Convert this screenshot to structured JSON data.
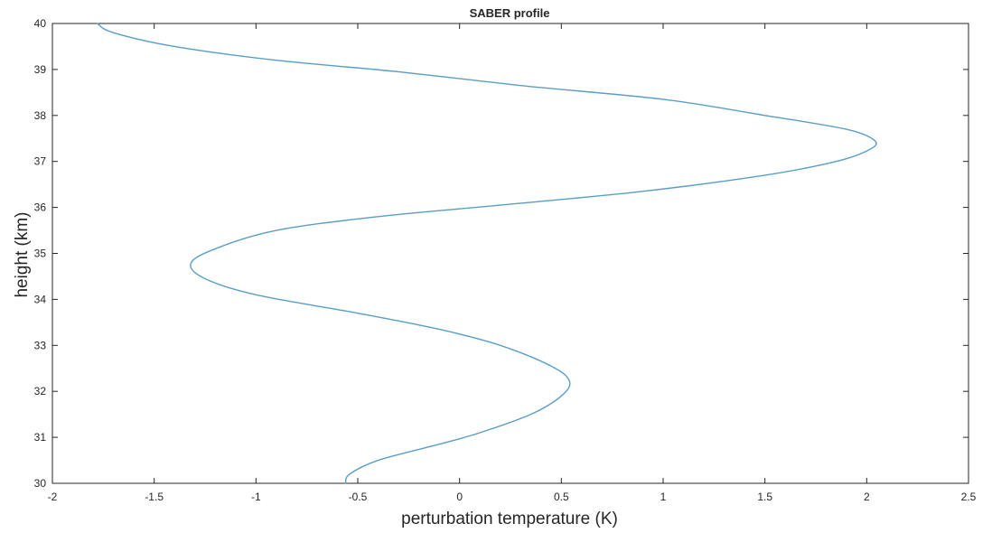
{
  "chart_data": {
    "type": "line",
    "title": "SABER profile",
    "xlabel": "perturbation temperature (K)",
    "ylabel": "height (km)",
    "xlim": [
      -2,
      2.5
    ],
    "ylim": [
      30,
      40
    ],
    "xticks": [
      -2,
      -1.5,
      -1,
      -0.5,
      0,
      0.5,
      1,
      1.5,
      2,
      2.5
    ],
    "xtick_labels": [
      "-2",
      "-1.5",
      "-1",
      "-0.5",
      "0",
      "0.5",
      "1",
      "1.5",
      "2",
      "2.5"
    ],
    "yticks": [
      30,
      31,
      32,
      33,
      34,
      35,
      36,
      37,
      38,
      39,
      40
    ],
    "ytick_labels": [
      "30",
      "31",
      "32",
      "33",
      "34",
      "35",
      "36",
      "37",
      "38",
      "39",
      "40"
    ],
    "grid": false,
    "series": [
      {
        "color": "#5b9ec5",
        "points": [
          {
            "x": -0.56,
            "y": 30.0
          },
          {
            "x": -0.54,
            "y": 30.2
          },
          {
            "x": -0.4,
            "y": 30.5
          },
          {
            "x": -0.1,
            "y": 30.85
          },
          {
            "x": 0.1,
            "y": 31.1
          },
          {
            "x": 0.35,
            "y": 31.5
          },
          {
            "x": 0.5,
            "y": 31.9
          },
          {
            "x": 0.54,
            "y": 32.22
          },
          {
            "x": 0.45,
            "y": 32.55
          },
          {
            "x": 0.2,
            "y": 33.0
          },
          {
            "x": -0.1,
            "y": 33.35
          },
          {
            "x": -0.5,
            "y": 33.7
          },
          {
            "x": -1.0,
            "y": 34.1
          },
          {
            "x": -1.25,
            "y": 34.45
          },
          {
            "x": -1.32,
            "y": 34.78
          },
          {
            "x": -1.2,
            "y": 35.1
          },
          {
            "x": -0.9,
            "y": 35.5
          },
          {
            "x": -0.4,
            "y": 35.8
          },
          {
            "x": 0.2,
            "y": 36.05
          },
          {
            "x": 0.9,
            "y": 36.35
          },
          {
            "x": 1.5,
            "y": 36.7
          },
          {
            "x": 1.85,
            "y": 37.0
          },
          {
            "x": 2.01,
            "y": 37.25
          },
          {
            "x": 2.04,
            "y": 37.45
          },
          {
            "x": 1.9,
            "y": 37.7
          },
          {
            "x": 1.5,
            "y": 38.0
          },
          {
            "x": 1.0,
            "y": 38.35
          },
          {
            "x": 0.3,
            "y": 38.65
          },
          {
            "x": -0.3,
            "y": 38.95
          },
          {
            "x": -0.9,
            "y": 39.2
          },
          {
            "x": -1.4,
            "y": 39.5
          },
          {
            "x": -1.7,
            "y": 39.8
          },
          {
            "x": -1.78,
            "y": 40.0
          }
        ]
      }
    ]
  }
}
